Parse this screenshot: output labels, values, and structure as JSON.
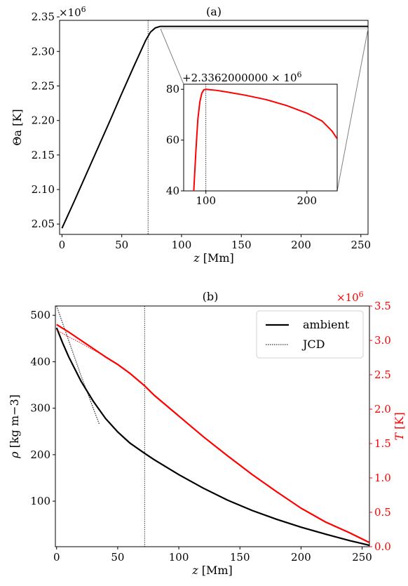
{
  "chart_data": [
    {
      "id": "a",
      "type": "line",
      "title": "(a)",
      "xlabel_var": "z",
      "xlabel_unit": "[Mm]",
      "ylabel_var": "Θa",
      "ylabel_unit": "[K]",
      "y_multiplier": "×10^6",
      "xlim": [
        -2,
        256
      ],
      "ylim": [
        2.035,
        2.345
      ],
      "xticks": [
        0,
        50,
        100,
        150,
        200,
        250
      ],
      "yticks": [
        2.05,
        2.1,
        2.15,
        2.2,
        2.25,
        2.3,
        2.35
      ],
      "ytick_labels": [
        "2.05",
        "2.10",
        "2.15",
        "2.20",
        "2.25",
        "2.30",
        "2.35"
      ],
      "vline_x": 72,
      "series": [
        {
          "color": "#000000",
          "x": [
            0,
            10,
            20,
            30,
            40,
            50,
            60,
            65,
            70,
            74,
            78,
            82,
            90,
            100,
            150,
            200,
            256
          ],
          "y": [
            2.044,
            2.082,
            2.121,
            2.16,
            2.199,
            2.239,
            2.278,
            2.297,
            2.316,
            2.328,
            2.334,
            2.3362,
            2.33628,
            2.33628,
            2.33627,
            2.33626,
            2.33626
          ]
        }
      ],
      "inset": {
        "offset_label": "+2.3362000000 × 10^6",
        "xlim": [
          78,
          230
        ],
        "ylim": [
          40,
          82
        ],
        "xticks": [
          100,
          200
        ],
        "yticks": [
          40,
          60,
          80
        ],
        "vline_x": 100,
        "series": [
          {
            "color": "#ff0000",
            "x": [
              88,
              90,
              92,
              94,
              96,
              98,
              100,
              110,
              120,
              140,
              160,
              180,
              200,
              215,
              225,
              230
            ],
            "y": [
              40,
              55,
              68,
              75,
              78.5,
              79.8,
              80,
              79.6,
              79,
              77.6,
              75.9,
              73.6,
              70.6,
              67.5,
              63.5,
              60.5
            ]
          }
        ]
      }
    },
    {
      "id": "b",
      "type": "line",
      "title": "(b)",
      "xlabel_var": "z",
      "xlabel_unit": "[Mm]",
      "ylabel_var": "ρ",
      "ylabel_unit": "[kg m−3]",
      "y2label_var": "T",
      "y2label_unit": "[K]",
      "y2_multiplier": "×10^6",
      "xlim": [
        -1,
        256
      ],
      "ylim": [
        2,
        520
      ],
      "y2lim": [
        0,
        3.5
      ],
      "xticks": [
        0,
        50,
        100,
        150,
        200,
        250
      ],
      "yticks": [
        100,
        200,
        300,
        400,
        500
      ],
      "y2ticks": [
        0.0,
        0.5,
        1.0,
        1.5,
        2.0,
        2.5,
        3.0,
        3.5
      ],
      "y2tick_labels": [
        "0.0",
        "0.5",
        "1.0",
        "1.5",
        "2.0",
        "2.5",
        "3.0",
        "3.5"
      ],
      "vline_x": 72,
      "legend": {
        "position": "top-right",
        "entries": [
          {
            "label": "ambient",
            "style": "solid"
          },
          {
            "label": "JCD",
            "style": "dotted"
          }
        ]
      },
      "series": [
        {
          "axis": "left",
          "style": "solid",
          "color": "#000000",
          "x": [
            0,
            5,
            10,
            20,
            30,
            40,
            50,
            60,
            72,
            80,
            100,
            120,
            140,
            160,
            180,
            200,
            220,
            240,
            256
          ],
          "y": [
            473,
            440,
            410,
            358,
            315,
            278,
            249,
            225,
            203,
            189,
            157,
            128,
            102,
            80,
            61,
            44,
            29,
            15,
            5
          ]
        },
        {
          "axis": "left",
          "style": "dotted",
          "color": "#000000",
          "x": [
            0,
            10,
            20,
            30,
            35
          ],
          "y": [
            520,
            445,
            370,
            300,
            265
          ]
        },
        {
          "axis": "right",
          "style": "solid",
          "color": "#ff0000",
          "x": [
            0,
            10,
            20,
            30,
            40,
            50,
            60,
            72,
            80,
            100,
            120,
            140,
            160,
            180,
            200,
            220,
            240,
            256
          ],
          "y": [
            3.23,
            3.12,
            3.0,
            2.88,
            2.76,
            2.65,
            2.52,
            2.34,
            2.2,
            1.9,
            1.6,
            1.32,
            1.05,
            0.8,
            0.56,
            0.36,
            0.2,
            0.06
          ]
        },
        {
          "axis": "right",
          "style": "dotted",
          "color": "#ff0000",
          "x": [
            0,
            10,
            20,
            30,
            40
          ],
          "y": [
            3.15,
            3.05,
            2.96,
            2.86,
            2.77
          ]
        }
      ]
    }
  ]
}
